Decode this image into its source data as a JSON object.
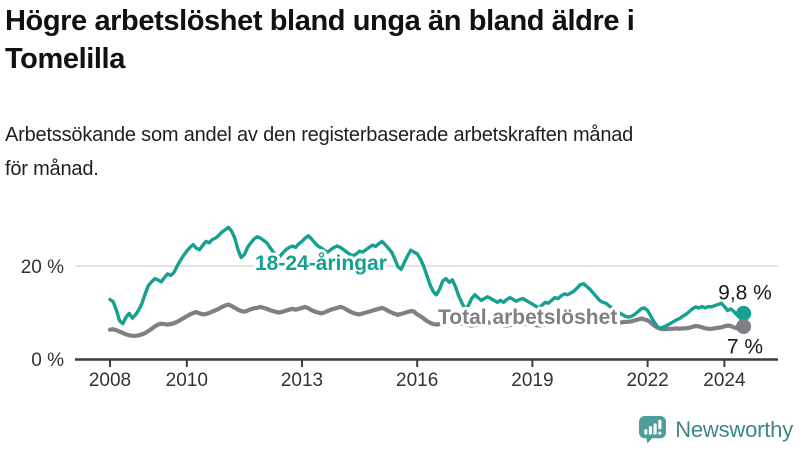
{
  "header": {
    "title": {
      "line1": "Högre arbetslöshet bland unga än bland äldre i",
      "line2": "Tomelilla"
    },
    "subtitle": {
      "line1": "Arbetssökande som andel av den registerbaserade arbetskraften månad",
      "line2": "för månad."
    }
  },
  "footer": {
    "brand": "Newsworthy",
    "logo_icon": "bar-chart-speech-bubble-icon"
  },
  "colors": {
    "young_line": "#16a090",
    "total_line": "#808084",
    "axis": "#3c3c3c",
    "grid": "#d9d9d9",
    "end_label_text": "#1a1a1a",
    "brand_icon": "#4d9e9a",
    "brand_text": "#3d8784"
  },
  "chart_data": {
    "type": "line",
    "x_unit": "month",
    "x_start_year": 2008,
    "x_end_approx": "mid 2024",
    "x_ticks": [
      {
        "year": 2008,
        "label": "2008"
      },
      {
        "year": 2010,
        "label": "2010"
      },
      {
        "year": 2013,
        "label": "2013"
      },
      {
        "year": 2016,
        "label": "2016"
      },
      {
        "year": 2019,
        "label": "2019"
      },
      {
        "year": 2022,
        "label": "2022"
      },
      {
        "year": 2024,
        "label": "2024"
      }
    ],
    "y_ticks": [
      {
        "value": 0,
        "label": "0 %"
      },
      {
        "value": 20,
        "label": "20 %"
      }
    ],
    "ylim": [
      0,
      30
    ],
    "grid": "horizontal line at 20 % only",
    "series": [
      {
        "name": "18-24-åringar",
        "color": "#16a090",
        "end_label": "9,8 %",
        "end_value": 9.8,
        "values": [
          12.8,
          12.3,
          10.5,
          8.2,
          7.6,
          9.0,
          9.8,
          8.8,
          9.5,
          10.6,
          12.0,
          14.0,
          15.8,
          16.6,
          17.3,
          17.0,
          16.6,
          17.5,
          18.3,
          18.0,
          18.6,
          20.0,
          21.2,
          22.3,
          23.2,
          24.0,
          24.6,
          23.8,
          23.5,
          24.5,
          25.3,
          25.0,
          25.7,
          26.0,
          26.6,
          27.3,
          27.8,
          28.3,
          27.5,
          26.0,
          23.5,
          21.8,
          22.5,
          24.0,
          25.0,
          25.8,
          26.3,
          26.0,
          25.5,
          25.0,
          24.0,
          23.0,
          22.3,
          22.0,
          22.8,
          23.5,
          24.0,
          24.3,
          24.0,
          24.8,
          25.3,
          26.0,
          26.5,
          25.8,
          25.0,
          24.3,
          23.9,
          23.4,
          23.0,
          23.5,
          24.0,
          24.3,
          24.0,
          23.5,
          23.0,
          22.5,
          22.2,
          22.6,
          23.2,
          23.0,
          23.5,
          24.0,
          24.5,
          24.2,
          24.8,
          25.3,
          24.6,
          23.8,
          23.0,
          21.5,
          19.8,
          19.3,
          20.8,
          22.2,
          23.4,
          23.0,
          22.6,
          21.5,
          20.0,
          18.0,
          16.0,
          14.5,
          13.8,
          15.0,
          16.8,
          17.3,
          16.5,
          17.0,
          15.5,
          13.5,
          12.0,
          10.8,
          11.5,
          13.0,
          13.8,
          13.2,
          12.6,
          13.0,
          13.4,
          13.0,
          12.6,
          12.2,
          12.6,
          12.2,
          12.8,
          13.2,
          12.8,
          12.4,
          12.8,
          13.0,
          12.6,
          12.2,
          11.8,
          11.4,
          10.9,
          11.6,
          12.2,
          12.0,
          12.6,
          13.2,
          13.0,
          13.6,
          14.0,
          13.8,
          14.2,
          14.6,
          15.3,
          16.0,
          16.2,
          15.6,
          15.0,
          14.2,
          13.4,
          12.6,
          12.2,
          12.0,
          11.4,
          10.9,
          10.4,
          10.0,
          9.6,
          9.2,
          9.0,
          9.2,
          9.6,
          10.2,
          10.8,
          11.0,
          10.4,
          9.2,
          8.0,
          7.0,
          6.6,
          6.9,
          7.2,
          7.6,
          8.0,
          8.4,
          8.7,
          9.2,
          9.6,
          10.2,
          10.8,
          11.2,
          11.0,
          11.3,
          11.0,
          11.3,
          11.2,
          11.5,
          11.7,
          12.0,
          11.3,
          10.4,
          10.8,
          10.2,
          9.4,
          9.6,
          9.8
        ]
      },
      {
        "name": "Total arbetslöshet",
        "color": "#808084",
        "end_label": "7 %",
        "end_value": 7.0,
        "values": [
          6.3,
          6.4,
          6.2,
          5.9,
          5.6,
          5.3,
          5.1,
          5.0,
          5.0,
          5.1,
          5.3,
          5.6,
          6.0,
          6.5,
          7.0,
          7.4,
          7.6,
          7.5,
          7.4,
          7.5,
          7.7,
          8.0,
          8.4,
          8.8,
          9.2,
          9.6,
          9.9,
          10.1,
          9.8,
          9.6,
          9.7,
          9.9,
          10.2,
          10.5,
          10.8,
          11.2,
          11.5,
          11.7,
          11.4,
          11.0,
          10.6,
          10.3,
          10.2,
          10.4,
          10.7,
          10.9,
          11.0,
          11.2,
          11.0,
          10.8,
          10.5,
          10.3,
          10.1,
          10.0,
          10.2,
          10.4,
          10.6,
          10.8,
          10.6,
          10.8,
          11.0,
          11.2,
          10.9,
          10.5,
          10.2,
          10.0,
          9.8,
          10.0,
          10.3,
          10.6,
          10.8,
          11.0,
          11.2,
          11.0,
          10.6,
          10.2,
          9.9,
          9.7,
          9.6,
          9.8,
          10.0,
          10.2,
          10.4,
          10.6,
          10.8,
          11.0,
          10.7,
          10.3,
          10.0,
          9.7,
          9.5,
          9.7,
          9.9,
          10.1,
          10.3,
          10.2,
          9.6,
          9.2,
          8.7,
          8.2,
          7.8,
          7.5,
          7.4,
          7.5,
          7.7,
          7.9,
          8.0,
          8.1,
          8.0,
          7.8,
          7.6,
          7.4,
          7.3,
          7.2,
          7.3,
          7.4,
          7.6,
          7.7,
          7.8,
          7.9,
          7.8,
          7.6,
          7.5,
          7.3,
          7.2,
          7.3,
          7.4,
          7.5,
          7.6,
          7.7,
          7.6,
          7.5,
          7.4,
          7.3,
          7.2,
          7.3,
          7.4,
          7.5,
          7.6,
          7.7,
          7.8,
          7.9,
          8.0,
          8.1,
          8.2,
          8.4,
          8.6,
          8.8,
          8.8,
          8.7,
          8.6,
          8.5,
          8.4,
          8.3,
          8.2,
          8.1,
          8.0,
          7.9,
          7.8,
          7.8,
          7.9,
          8.0,
          8.0,
          8.1,
          8.3,
          8.5,
          8.7,
          8.5,
          8.3,
          7.8,
          7.2,
          6.8,
          6.5,
          6.4,
          6.4,
          6.5,
          6.5,
          6.6,
          6.5,
          6.6,
          6.6,
          6.7,
          6.9,
          7.1,
          7.0,
          6.8,
          6.6,
          6.5,
          6.5,
          6.6,
          6.7,
          6.8,
          7.0,
          7.2,
          7.1,
          6.8,
          6.6,
          6.8,
          7.0
        ]
      }
    ]
  }
}
